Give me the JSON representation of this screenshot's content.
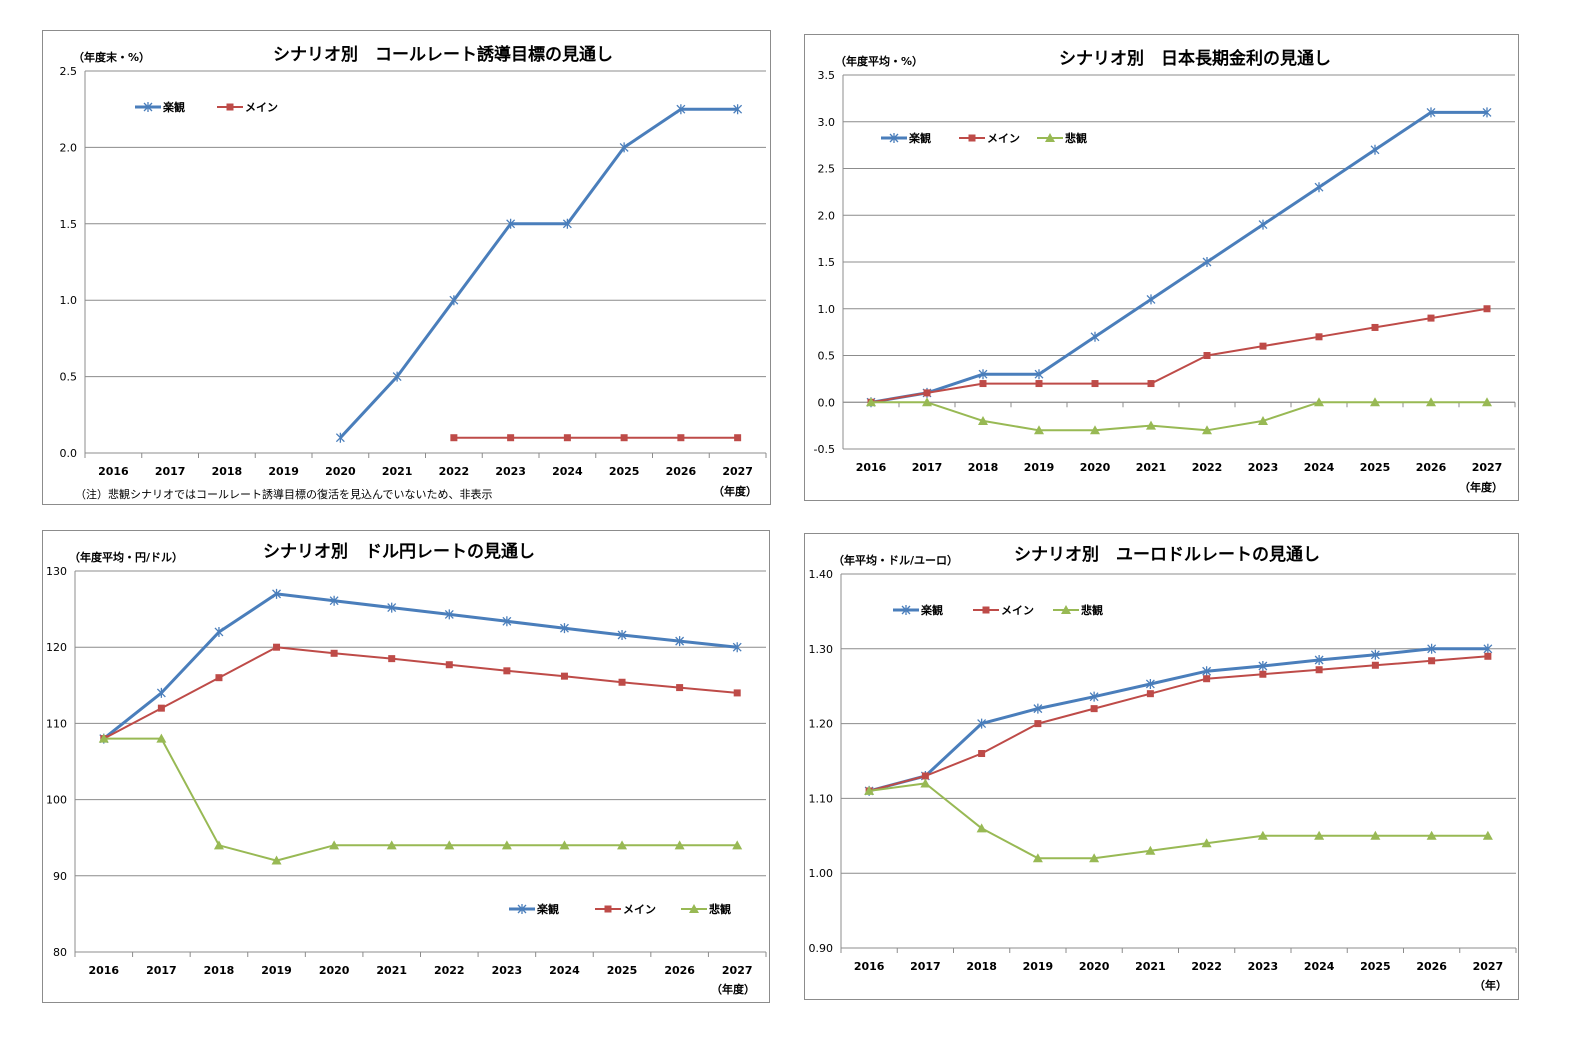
{
  "chart_data": [
    {
      "type": "line",
      "title": "シナリオ別　コールレート誘導目標の見通し",
      "unit_label": "（年度末・%）",
      "xunit_label": "（年度）",
      "note": "（注）悲観シナリオではコールレート誘導目標の復活を見込んでいないため、非表示",
      "categories": [
        "2016",
        "2017",
        "2018",
        "2019",
        "2020",
        "2021",
        "2022",
        "2023",
        "2024",
        "2025",
        "2026",
        "2027"
      ],
      "ylim": [
        0,
        2.5
      ],
      "yticks": [
        "0.0",
        "0.5",
        "1.0",
        "1.5",
        "2.0",
        "2.5"
      ],
      "grid": true,
      "legend_position": "top-left",
      "series": [
        {
          "name": "楽観",
          "color": "#4a7ebb",
          "marker": "star",
          "values": [
            null,
            null,
            null,
            null,
            0.1,
            0.5,
            1.0,
            1.5,
            1.5,
            2.0,
            2.25,
            2.25
          ]
        },
        {
          "name": "メイン",
          "color": "#be4b48",
          "marker": "square",
          "values": [
            null,
            null,
            null,
            null,
            null,
            null,
            0.1,
            0.1,
            0.1,
            0.1,
            0.1,
            0.1
          ]
        }
      ]
    },
    {
      "type": "line",
      "title": "シナリオ別　日本長期金利の見通し",
      "unit_label": "（年度平均・%）",
      "xunit_label": "（年度）",
      "categories": [
        "2016",
        "2017",
        "2018",
        "2019",
        "2020",
        "2021",
        "2022",
        "2023",
        "2024",
        "2025",
        "2026",
        "2027"
      ],
      "ylim": [
        -0.5,
        3.5
      ],
      "yticks": [
        "-0.5",
        "0.0",
        "0.5",
        "1.0",
        "1.5",
        "2.0",
        "2.5",
        "3.0",
        "3.5"
      ],
      "grid": true,
      "legend_position": "top-left",
      "series": [
        {
          "name": "楽観",
          "color": "#4a7ebb",
          "marker": "star",
          "values": [
            0.0,
            0.1,
            0.3,
            0.3,
            0.7,
            1.1,
            1.5,
            1.9,
            2.3,
            2.7,
            3.1,
            3.1
          ]
        },
        {
          "name": "メイン",
          "color": "#be4b48",
          "marker": "square",
          "values": [
            0.0,
            0.1,
            0.2,
            0.2,
            0.2,
            0.2,
            0.5,
            0.6,
            0.7,
            0.8,
            0.9,
            1.0
          ]
        },
        {
          "name": "悲観",
          "color": "#98b954",
          "marker": "triangle",
          "values": [
            0.0,
            0.0,
            -0.2,
            -0.3,
            -0.3,
            -0.25,
            -0.3,
            -0.2,
            0.0,
            0.0,
            0.0,
            0.0
          ]
        }
      ]
    },
    {
      "type": "line",
      "title": "シナリオ別　ドル円レートの見通し",
      "unit_label": "（年度平均・円/ドル）",
      "xunit_label": "（年度）",
      "categories": [
        "2016",
        "2017",
        "2018",
        "2019",
        "2020",
        "2021",
        "2022",
        "2023",
        "2024",
        "2025",
        "2026",
        "2027"
      ],
      "ylim": [
        80,
        130
      ],
      "yticks": [
        "80",
        "90",
        "100",
        "110",
        "120",
        "130"
      ],
      "grid": true,
      "legend_position": "bottom-right",
      "series": [
        {
          "name": "楽観",
          "color": "#4a7ebb",
          "marker": "star",
          "values": [
            108,
            114,
            122,
            127,
            126.1,
            125.2,
            124.3,
            123.4,
            122.5,
            121.6,
            120.8,
            120
          ]
        },
        {
          "name": "メイン",
          "color": "#be4b48",
          "marker": "square",
          "values": [
            108,
            112,
            116,
            120,
            119.2,
            118.5,
            117.7,
            116.9,
            116.2,
            115.4,
            114.7,
            114
          ]
        },
        {
          "name": "悲観",
          "color": "#98b954",
          "marker": "triangle",
          "values": [
            108,
            108,
            94,
            92,
            94,
            94,
            94,
            94,
            94,
            94,
            94,
            94
          ]
        }
      ]
    },
    {
      "type": "line",
      "title": "シナリオ別　ユーロドルレートの見通し",
      "unit_label": "（年平均・ドル/ユーロ）",
      "xunit_label": "（年）",
      "categories": [
        "2016",
        "2017",
        "2018",
        "2019",
        "2020",
        "2021",
        "2022",
        "2023",
        "2024",
        "2025",
        "2026",
        "2027"
      ],
      "ylim": [
        0.9,
        1.4
      ],
      "yticks": [
        "0.90",
        "1.00",
        "1.10",
        "1.20",
        "1.30",
        "1.40"
      ],
      "grid": true,
      "legend_position": "top-left",
      "series": [
        {
          "name": "楽観",
          "color": "#4a7ebb",
          "marker": "star",
          "values": [
            1.11,
            1.13,
            1.2,
            1.22,
            1.236,
            1.253,
            1.27,
            1.277,
            1.285,
            1.292,
            1.3,
            1.3
          ]
        },
        {
          "name": "メイン",
          "color": "#be4b48",
          "marker": "square",
          "values": [
            1.11,
            1.13,
            1.16,
            1.2,
            1.22,
            1.24,
            1.26,
            1.266,
            1.272,
            1.278,
            1.284,
            1.29
          ]
        },
        {
          "name": "悲観",
          "color": "#98b954",
          "marker": "triangle",
          "values": [
            1.11,
            1.12,
            1.06,
            1.02,
            1.02,
            1.03,
            1.04,
            1.05,
            1.05,
            1.05,
            1.05,
            1.05
          ]
        }
      ]
    }
  ]
}
